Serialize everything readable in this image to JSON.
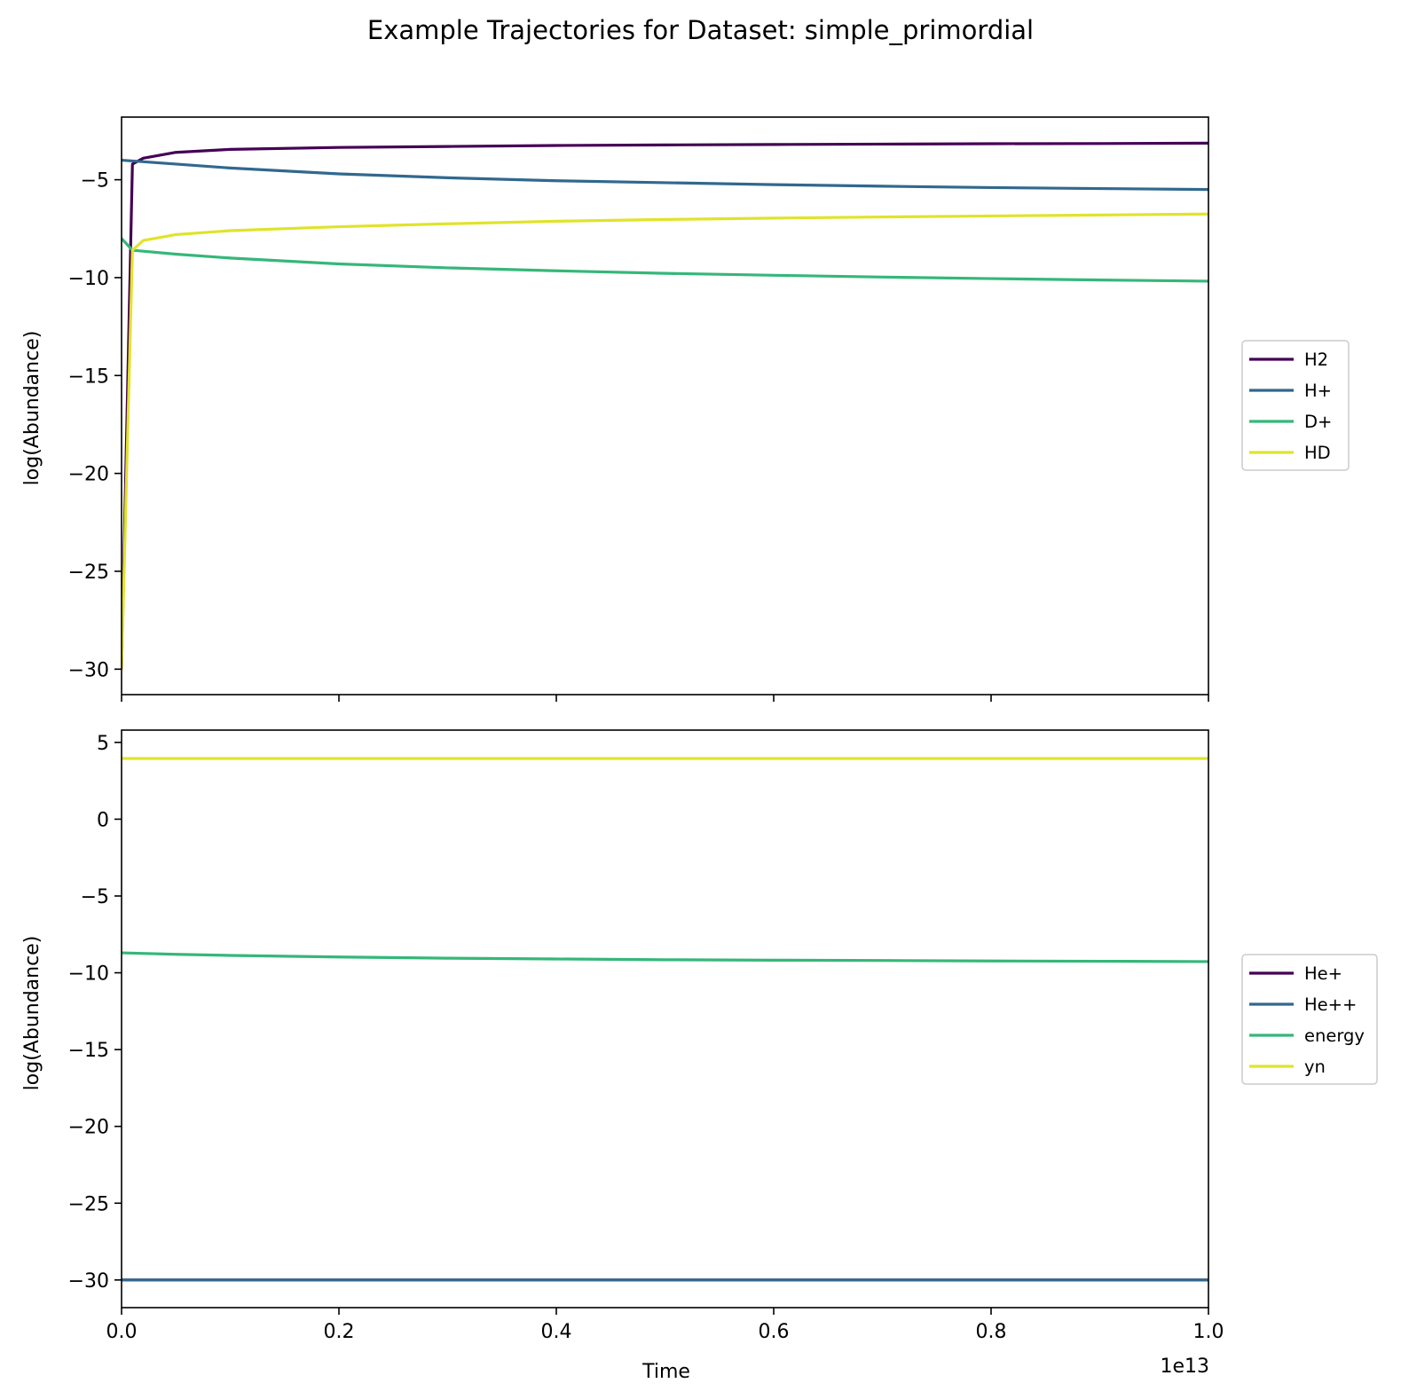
{
  "figure": {
    "title": "Example Trajectories for Dataset: simple_primordial",
    "xlabel": "Time",
    "x_offset_label": "1e13"
  },
  "chart_data": [
    {
      "type": "line",
      "ylabel": "log(Abundance)",
      "xlim": [
        0,
        1.0
      ],
      "ylim": [
        -31.3,
        -1.8
      ],
      "x_scale_note": "x values in units of 1e13",
      "xticks": [
        0.0,
        0.2,
        0.4,
        0.6,
        0.8,
        1.0
      ],
      "yticks": [
        -30,
        -25,
        -20,
        -15,
        -10,
        -5
      ],
      "show_xtick_labels": false,
      "grid": false,
      "legend_position": "outside right",
      "series": [
        {
          "name": "H2",
          "color": "#440154",
          "points": [
            [
              0,
              -30
            ],
            [
              0.01,
              -4.2
            ],
            [
              0.02,
              -3.9
            ],
            [
              0.05,
              -3.6
            ],
            [
              0.1,
              -3.45
            ],
            [
              0.2,
              -3.35
            ],
            [
              0.3,
              -3.3
            ],
            [
              0.4,
              -3.25
            ],
            [
              0.5,
              -3.22
            ],
            [
              0.6,
              -3.2
            ],
            [
              0.7,
              -3.18
            ],
            [
              0.8,
              -3.16
            ],
            [
              0.9,
              -3.15
            ],
            [
              1.0,
              -3.13
            ]
          ]
        },
        {
          "name": "H+",
          "color": "#31688e",
          "points": [
            [
              0,
              -4.0
            ],
            [
              0.05,
              -4.2
            ],
            [
              0.1,
              -4.4
            ],
            [
              0.2,
              -4.7
            ],
            [
              0.3,
              -4.9
            ],
            [
              0.4,
              -5.05
            ],
            [
              0.5,
              -5.15
            ],
            [
              0.6,
              -5.25
            ],
            [
              0.7,
              -5.33
            ],
            [
              0.8,
              -5.4
            ],
            [
              0.9,
              -5.45
            ],
            [
              1.0,
              -5.5
            ]
          ]
        },
        {
          "name": "D+",
          "color": "#35b779",
          "points": [
            [
              0,
              -8.0
            ],
            [
              0.01,
              -8.6
            ],
            [
              0.05,
              -8.8
            ],
            [
              0.1,
              -9.0
            ],
            [
              0.2,
              -9.3
            ],
            [
              0.3,
              -9.5
            ],
            [
              0.4,
              -9.65
            ],
            [
              0.5,
              -9.78
            ],
            [
              0.6,
              -9.88
            ],
            [
              0.7,
              -9.97
            ],
            [
              0.8,
              -10.05
            ],
            [
              0.9,
              -10.12
            ],
            [
              1.0,
              -10.18
            ]
          ]
        },
        {
          "name": "HD",
          "color": "#e0e32a",
          "points": [
            [
              0,
              -30
            ],
            [
              0.01,
              -8.6
            ],
            [
              0.02,
              -8.1
            ],
            [
              0.05,
              -7.8
            ],
            [
              0.1,
              -7.6
            ],
            [
              0.2,
              -7.4
            ],
            [
              0.3,
              -7.25
            ],
            [
              0.4,
              -7.12
            ],
            [
              0.5,
              -7.03
            ],
            [
              0.6,
              -6.96
            ],
            [
              0.7,
              -6.9
            ],
            [
              0.8,
              -6.85
            ],
            [
              0.9,
              -6.8
            ],
            [
              1.0,
              -6.75
            ]
          ]
        }
      ]
    },
    {
      "type": "line",
      "ylabel": "log(Abundance)",
      "xlim": [
        0,
        1.0
      ],
      "ylim": [
        -31.8,
        5.8
      ],
      "x_scale_note": "x values in units of 1e13",
      "xticks": [
        0.0,
        0.2,
        0.4,
        0.6,
        0.8,
        1.0
      ],
      "xtick_labels": [
        "0.0",
        "0.2",
        "0.4",
        "0.6",
        "0.8",
        "1.0"
      ],
      "yticks": [
        -30,
        -25,
        -20,
        -15,
        -10,
        -5,
        0,
        5
      ],
      "show_xtick_labels": true,
      "grid": false,
      "legend_position": "outside right",
      "series": [
        {
          "name": "He+",
          "color": "#440154",
          "points": [
            [
              0,
              -30
            ],
            [
              1.0,
              -30
            ]
          ]
        },
        {
          "name": "He++",
          "color": "#31688e",
          "points": [
            [
              0,
              -30
            ],
            [
              1.0,
              -30
            ]
          ]
        },
        {
          "name": "energy",
          "color": "#35b779",
          "points": [
            [
              0,
              -8.7
            ],
            [
              0.05,
              -8.8
            ],
            [
              0.1,
              -8.87
            ],
            [
              0.2,
              -8.97
            ],
            [
              0.3,
              -9.05
            ],
            [
              0.4,
              -9.1
            ],
            [
              0.5,
              -9.15
            ],
            [
              0.6,
              -9.18
            ],
            [
              0.7,
              -9.2
            ],
            [
              0.8,
              -9.23
            ],
            [
              0.9,
              -9.25
            ],
            [
              1.0,
              -9.27
            ]
          ]
        },
        {
          "name": "yn",
          "color": "#e0e32a",
          "points": [
            [
              0,
              3.95
            ],
            [
              1.0,
              3.95
            ]
          ]
        }
      ]
    }
  ]
}
